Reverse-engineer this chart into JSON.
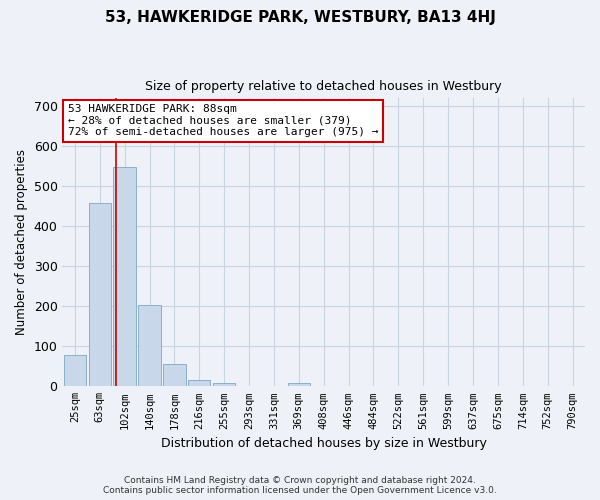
{
  "title": "53, HAWKERIDGE PARK, WESTBURY, BA13 4HJ",
  "subtitle": "Size of property relative to detached houses in Westbury",
  "xlabel": "Distribution of detached houses by size in Westbury",
  "ylabel": "Number of detached properties",
  "footer_line1": "Contains HM Land Registry data © Crown copyright and database right 2024.",
  "footer_line2": "Contains public sector information licensed under the Open Government Licence v3.0.",
  "categories": [
    "25sqm",
    "63sqm",
    "102sqm",
    "140sqm",
    "178sqm",
    "216sqm",
    "255sqm",
    "293sqm",
    "331sqm",
    "369sqm",
    "408sqm",
    "446sqm",
    "484sqm",
    "522sqm",
    "561sqm",
    "599sqm",
    "637sqm",
    "675sqm",
    "714sqm",
    "752sqm",
    "790sqm"
  ],
  "values": [
    78,
    458,
    548,
    203,
    55,
    15,
    8,
    0,
    0,
    8,
    0,
    0,
    0,
    0,
    0,
    0,
    0,
    0,
    0,
    0,
    0
  ],
  "bar_color": "#c8d8ea",
  "bar_edge_color": "#8ab0c8",
  "grid_color": "#c8d4e0",
  "background_color": "#eef2f8",
  "vline_x": 1.64,
  "vline_color": "#cc0000",
  "annotation_line1": "53 HAWKERIDGE PARK: 88sqm",
  "annotation_line2": "← 28% of detached houses are smaller (379)",
  "annotation_line3": "72% of semi-detached houses are larger (975) →",
  "annotation_box_color": "#ffffff",
  "annotation_box_edge_color": "#cc0000",
  "ylim": [
    0,
    720
  ],
  "yticks": [
    0,
    100,
    200,
    300,
    400,
    500,
    600,
    700
  ]
}
